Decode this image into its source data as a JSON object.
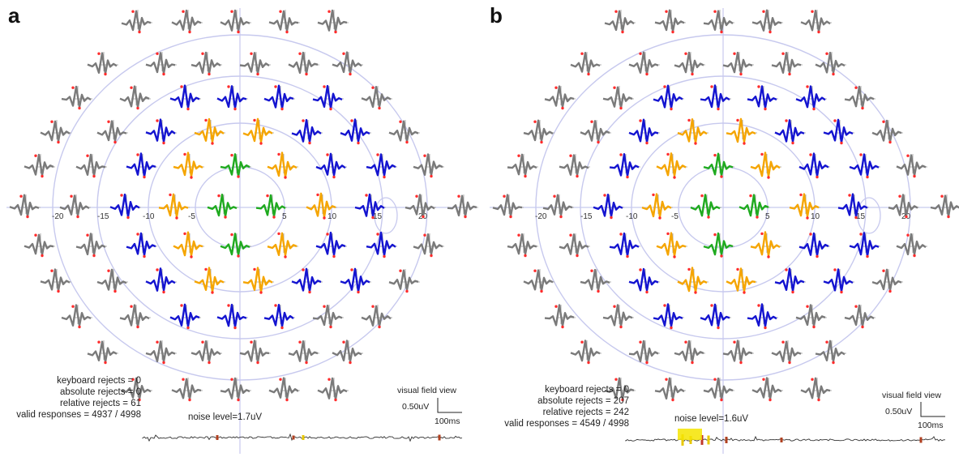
{
  "colors": {
    "center": "#e31a1c",
    "ring1": "#1faa1f",
    "ring2": "#f5a500",
    "ring3": "#1414d0",
    "outer": "#7a7a7a",
    "circle": "#c7c9ee",
    "peak": "#ff2b2b"
  },
  "panels": [
    {
      "id": "a",
      "label": "a",
      "stats": [
        "keyboard rejects = 0",
        "absolute rejects = 0",
        "relative rejects = 61",
        "valid responses = 4937 / 4998"
      ],
      "noise": "noise level=1.7uV",
      "view": "visual field view",
      "scale_uv": "0.50uV",
      "scale_ms": "100ms",
      "ticks": [
        "-20",
        "-15",
        "-10",
        "-5",
        "5",
        "10",
        "15",
        "20"
      ],
      "disturbance": false
    },
    {
      "id": "b",
      "label": "b",
      "stats": [
        "keyboard rejects = 0",
        "absolute rejects = 207",
        "relative rejects = 242",
        "valid responses = 4549 / 4998"
      ],
      "noise": "noise level=1.6uV",
      "view": "visual field view",
      "scale_uv": "0.50uV",
      "scale_ms": "100ms",
      "ticks": [
        "-20",
        "-15",
        "-10",
        "-5",
        "5",
        "10",
        "15",
        "20"
      ],
      "disturbance": true
    }
  ]
}
